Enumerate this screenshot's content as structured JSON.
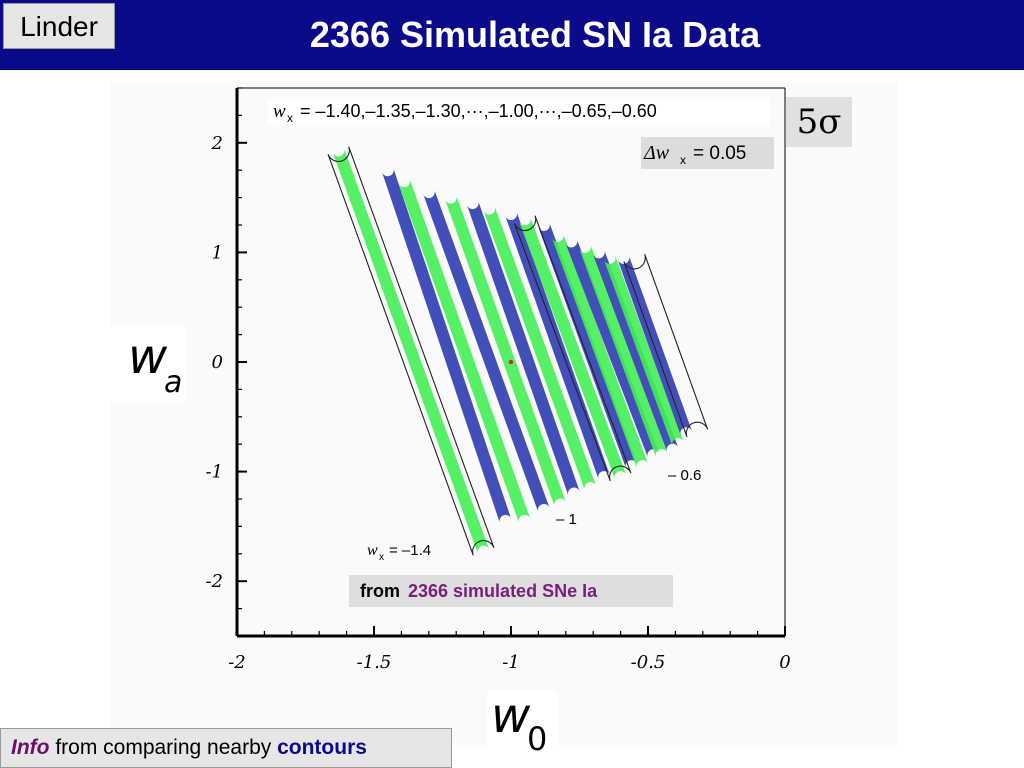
{
  "header": {
    "author": "Linder",
    "title": "2366 Simulated SN Ia Data"
  },
  "legend": {
    "wx_symbol": "w",
    "wx_sub": "x",
    "wx_values_text": "= –1.40,–1.35,–1.30,···,–1.00,···,–0.65,–0.60",
    "dwx_text": "Δw",
    "dwx_sub": "x",
    "dwx_value": "= 0.05",
    "sigma": "5σ"
  },
  "axes": {
    "ylabel_main": "w",
    "ylabel_sub": "a",
    "xlabel_main": "w",
    "xlabel_sub": "0"
  },
  "annotations": {
    "wx_bottom_symbol": "w",
    "wx_bottom_sub": "x",
    "wx_bottom_value": "= –1.4",
    "mid_label": "– 1",
    "right_label": "– 0.6"
  },
  "source": {
    "prefix": "from",
    "highlight": "2366 simulated SNe Ia"
  },
  "footer": {
    "info": "Info",
    "middle": " from comparing nearby ",
    "contours": "contours"
  },
  "colors": {
    "header_bg": "#0b0b8a",
    "green": "#44ee55",
    "blue": "#2f3cb0",
    "outline": "#222222",
    "fiducial": "#dd2222"
  },
  "chart_data": {
    "type": "scatter",
    "title": "2366 Simulated SN Ia Data",
    "xlabel": "w0",
    "ylabel": "wa",
    "xlim": [
      -2,
      0
    ],
    "ylim": [
      -2.5,
      2.5
    ],
    "xticks": [
      "-2",
      "-1.5",
      "-1",
      "-0.5",
      "0"
    ],
    "yticks": [
      "2",
      "1",
      "0",
      "-1",
      "-2"
    ],
    "grid": false,
    "fiducial_point": {
      "w0": -1.0,
      "wa": 0.0
    },
    "series": [
      {
        "wx": -1.4,
        "fill": "green",
        "outlined": true,
        "wa_top": 1.93,
        "w0_top": -1.63,
        "wa_bottom": -1.73,
        "w0_bottom": -1.1
      },
      {
        "wx": -1.35,
        "fill": "blue",
        "outlined": false,
        "wa_top": 1.75,
        "w0_top": -1.45,
        "wa_bottom": -1.45,
        "w0_bottom": -1.02
      },
      {
        "wx": -1.3,
        "fill": "green",
        "outlined": false,
        "wa_top": 1.65,
        "w0_top": -1.39,
        "wa_bottom": -1.45,
        "w0_bottom": -0.95
      },
      {
        "wx": -1.25,
        "fill": "blue",
        "outlined": false,
        "wa_top": 1.55,
        "w0_top": -1.3,
        "wa_bottom": -1.35,
        "w0_bottom": -0.88
      },
      {
        "wx": -1.2,
        "fill": "green",
        "outlined": false,
        "wa_top": 1.5,
        "w0_top": -1.22,
        "wa_bottom": -1.3,
        "w0_bottom": -0.82
      },
      {
        "wx": -1.15,
        "fill": "blue",
        "outlined": false,
        "wa_top": 1.45,
        "w0_top": -1.14,
        "wa_bottom": -1.2,
        "w0_bottom": -0.77
      },
      {
        "wx": -1.1,
        "fill": "green",
        "outlined": false,
        "wa_top": 1.4,
        "w0_top": -1.08,
        "wa_bottom": -1.15,
        "w0_bottom": -0.71
      },
      {
        "wx": -1.05,
        "fill": "blue",
        "outlined": false,
        "wa_top": 1.35,
        "w0_top": -1.0,
        "wa_bottom": -1.05,
        "w0_bottom": -0.66
      },
      {
        "wx": -1.0,
        "fill": "green",
        "outlined": true,
        "wa_top": 1.3,
        "w0_top": -0.95,
        "wa_bottom": -1.05,
        "w0_bottom": -0.6
      },
      {
        "wx": -0.95,
        "fill": "blue",
        "outlined": false,
        "wa_top": 1.25,
        "w0_top": -0.88,
        "wa_bottom": -0.95,
        "w0_bottom": -0.56
      },
      {
        "wx": -0.9,
        "fill": "green",
        "outlined": false,
        "wa_top": 1.15,
        "w0_top": -0.83,
        "wa_bottom": -0.95,
        "w0_bottom": -0.52
      },
      {
        "wx": -0.85,
        "fill": "blue",
        "outlined": false,
        "wa_top": 1.1,
        "w0_top": -0.78,
        "wa_bottom": -0.85,
        "w0_bottom": -0.48
      },
      {
        "wx": -0.8,
        "fill": "green",
        "outlined": false,
        "wa_top": 1.05,
        "w0_top": -0.73,
        "wa_bottom": -0.85,
        "w0_bottom": -0.45
      },
      {
        "wx": -0.75,
        "fill": "blue",
        "outlined": false,
        "wa_top": 1.0,
        "w0_top": -0.68,
        "wa_bottom": -0.8,
        "w0_bottom": -0.41
      },
      {
        "wx": -0.7,
        "fill": "green",
        "outlined": false,
        "wa_top": 0.95,
        "w0_top": -0.64,
        "wa_bottom": -0.75,
        "w0_bottom": -0.39
      },
      {
        "wx": -0.65,
        "fill": "blue",
        "outlined": false,
        "wa_top": 0.95,
        "w0_top": -0.59,
        "wa_bottom": -0.65,
        "w0_bottom": -0.36
      },
      {
        "wx": -0.6,
        "fill": "none",
        "outlined": true,
        "wa_top": 0.95,
        "w0_top": -0.55,
        "wa_bottom": -0.65,
        "w0_bottom": -0.32
      }
    ]
  }
}
